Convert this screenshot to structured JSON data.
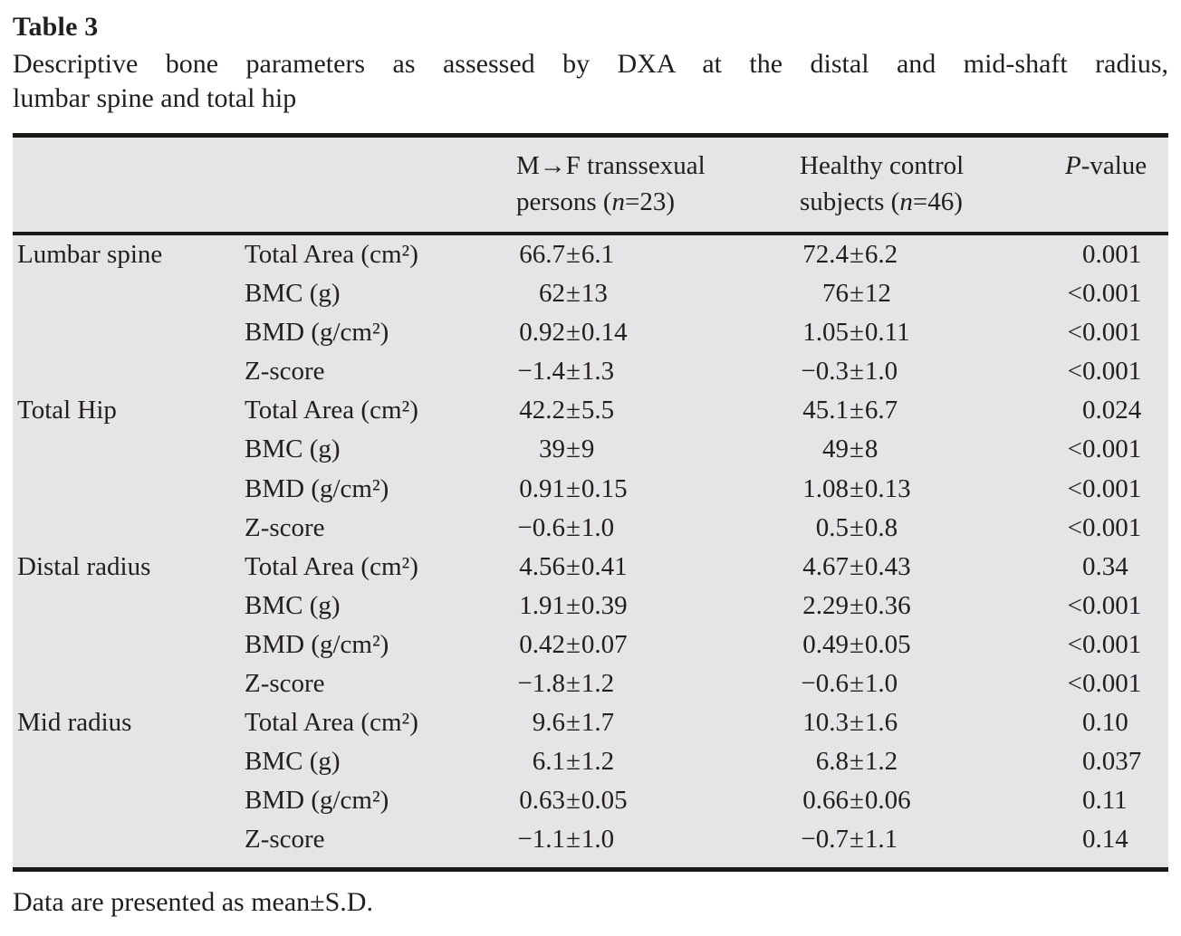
{
  "title": "Table 3",
  "caption": {
    "line1": "Descriptive bone parameters as assessed by DXA at the distal and mid-shaft radius,",
    "line2": "lumbar spine and total hip"
  },
  "header": {
    "group1": {
      "line1": "M→F transsexual",
      "line2_pre": "persons (",
      "n": "n",
      "line2_post": "=23)"
    },
    "group2": {
      "line1": "Healthy control",
      "line2_pre": "subjects (",
      "n": "n",
      "line2_post": "=46)"
    },
    "pvalue": {
      "italic": "P",
      "rest": "-value"
    }
  },
  "rows": [
    {
      "region": "Lumbar spine",
      "param": "Total Area (cm²)",
      "v1": {
        "mean": "66.7",
        "sd": "6.1"
      },
      "v2": {
        "mean": "72.4",
        "sd": "6.2"
      },
      "p": {
        "lt": "",
        "value": "0.001"
      }
    },
    {
      "region": "",
      "param": "BMC (g)",
      "v1": {
        "mean": "62",
        "sd": "13"
      },
      "v2": {
        "mean": "76",
        "sd": "12"
      },
      "p": {
        "lt": "<",
        "value": "0.001"
      }
    },
    {
      "region": "",
      "param": "BMD (g/cm²)",
      "v1": {
        "mean": "0.92",
        "sd": "0.14"
      },
      "v2": {
        "mean": "1.05",
        "sd": "0.11"
      },
      "p": {
        "lt": "<",
        "value": "0.001"
      }
    },
    {
      "region": "",
      "param": "Z-score",
      "v1": {
        "mean": "−1.4",
        "sd": "1.3"
      },
      "v2": {
        "mean": "−0.3",
        "sd": "1.0"
      },
      "p": {
        "lt": "<",
        "value": "0.001"
      }
    },
    {
      "region": "Total Hip",
      "param": "Total Area (cm²)",
      "v1": {
        "mean": "42.2",
        "sd": "5.5"
      },
      "v2": {
        "mean": "45.1",
        "sd": "6.7"
      },
      "p": {
        "lt": "",
        "value": "0.024"
      }
    },
    {
      "region": "",
      "param": "BMC (g)",
      "v1": {
        "mean": "39",
        "sd": "9"
      },
      "v2": {
        "mean": "49",
        "sd": "8"
      },
      "p": {
        "lt": "<",
        "value": "0.001"
      }
    },
    {
      "region": "",
      "param": "BMD (g/cm²)",
      "v1": {
        "mean": "0.91",
        "sd": "0.15"
      },
      "v2": {
        "mean": "1.08",
        "sd": "0.13"
      },
      "p": {
        "lt": "<",
        "value": "0.001"
      }
    },
    {
      "region": "",
      "param": "Z-score",
      "v1": {
        "mean": "−0.6",
        "sd": "1.0"
      },
      "v2": {
        "mean": "0.5",
        "sd": "0.8"
      },
      "p": {
        "lt": "<",
        "value": "0.001"
      }
    },
    {
      "region": "Distal radius",
      "param": "Total Area (cm²)",
      "v1": {
        "mean": "4.56",
        "sd": "0.41"
      },
      "v2": {
        "mean": "4.67",
        "sd": "0.43"
      },
      "p": {
        "lt": "",
        "value": "0.34"
      }
    },
    {
      "region": "",
      "param": "BMC (g)",
      "v1": {
        "mean": "1.91",
        "sd": "0.39"
      },
      "v2": {
        "mean": "2.29",
        "sd": "0.36"
      },
      "p": {
        "lt": "<",
        "value": "0.001"
      }
    },
    {
      "region": "",
      "param": "BMD (g/cm²)",
      "v1": {
        "mean": "0.42",
        "sd": "0.07"
      },
      "v2": {
        "mean": "0.49",
        "sd": "0.05"
      },
      "p": {
        "lt": "<",
        "value": "0.001"
      }
    },
    {
      "region": "",
      "param": "Z-score",
      "v1": {
        "mean": "−1.8",
        "sd": "1.2"
      },
      "v2": {
        "mean": "−0.6",
        "sd": "1.0"
      },
      "p": {
        "lt": "<",
        "value": "0.001"
      }
    },
    {
      "region": "Mid radius",
      "param": "Total Area (cm²)",
      "v1": {
        "mean": "9.6",
        "sd": "1.7"
      },
      "v2": {
        "mean": "10.3",
        "sd": "1.6"
      },
      "p": {
        "lt": "",
        "value": "0.10"
      }
    },
    {
      "region": "",
      "param": "BMC (g)",
      "v1": {
        "mean": "6.1",
        "sd": "1.2"
      },
      "v2": {
        "mean": "6.8",
        "sd": "1.2"
      },
      "p": {
        "lt": "",
        "value": "0.037"
      }
    },
    {
      "region": "",
      "param": "BMD (g/cm²)",
      "v1": {
        "mean": "0.63",
        "sd": "0.05"
      },
      "v2": {
        "mean": "0.66",
        "sd": "0.06"
      },
      "p": {
        "lt": "",
        "value": "0.11"
      }
    },
    {
      "region": "",
      "param": "Z-score",
      "v1": {
        "mean": "−1.1",
        "sd": "1.0"
      },
      "v2": {
        "mean": "−0.7",
        "sd": "1.1"
      },
      "p": {
        "lt": "",
        "value": "0.14"
      }
    }
  ],
  "footnote": "Data are presented as mean±S.D.",
  "colors": {
    "table_bg": "#e5e5e7",
    "rule": "#1b1816",
    "text": "#221e1f"
  }
}
